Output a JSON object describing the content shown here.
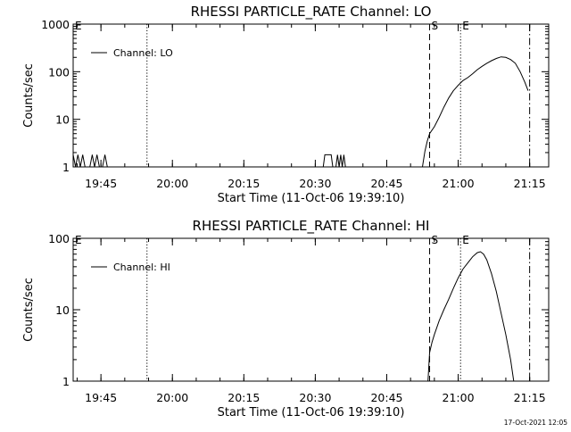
{
  "footer": {
    "timestamp": "17-Oct-2021 12:05"
  },
  "chart_data": [
    {
      "type": "line",
      "title": "RHESSI PARTICLE_RATE Channel: LO",
      "xlabel": "Start Time (11-Oct-06 19:39:10)",
      "ylabel": "Counts/sec",
      "yscale": "log",
      "xlim": [
        "19:39:10",
        "21:19:00"
      ],
      "ylim": [
        1,
        1000
      ],
      "xticks": [
        "19:45",
        "20:00",
        "20:15",
        "20:30",
        "20:45",
        "21:00",
        "21:15"
      ],
      "yticks": [
        "1",
        "10",
        "100",
        "1000"
      ],
      "grid": false,
      "legend_position": "top-left",
      "series": [
        {
          "name": "Channel: LO",
          "points": [
            [
              "19:39:10",
              1.8
            ],
            [
              "19:39:40",
              1
            ],
            [
              "19:40:10",
              1.8
            ],
            [
              "19:40:40",
              1
            ],
            [
              "19:41:10",
              1.8
            ],
            [
              "19:41:40",
              1
            ],
            [
              "19:42:40",
              1
            ],
            [
              "19:43:10",
              1.8
            ],
            [
              "19:43:40",
              1
            ],
            [
              "19:44:10",
              1.8
            ],
            [
              "19:44:40",
              1
            ],
            [
              "19:45:20",
              1
            ],
            [
              "19:45:50",
              1.8
            ],
            [
              "19:46:20",
              1
            ],
            [
              "20:31:40",
              1
            ],
            [
              "20:32:00",
              1.8
            ],
            [
              "20:33:20",
              1.8
            ],
            [
              "20:33:40",
              1
            ],
            [
              "20:34:20",
              1
            ],
            [
              "20:34:40",
              1.8
            ],
            [
              "20:35:00",
              1
            ],
            [
              "20:35:20",
              1.8
            ],
            [
              "20:35:40",
              1
            ],
            [
              "20:36:00",
              1.8
            ],
            [
              "20:36:20",
              1
            ],
            [
              "20:52:30",
              1
            ],
            [
              "20:53:00",
              2.1
            ],
            [
              "20:53:30",
              3.5
            ],
            [
              "20:54:00",
              5
            ],
            [
              "20:55:00",
              7
            ],
            [
              "20:56:00",
              11
            ],
            [
              "20:57:00",
              18
            ],
            [
              "20:58:00",
              28
            ],
            [
              "20:59:00",
              40
            ],
            [
              "21:00:00",
              52
            ],
            [
              "21:01:00",
              65
            ],
            [
              "21:02:00",
              75
            ],
            [
              "21:03:00",
              90
            ],
            [
              "21:04:00",
              110
            ],
            [
              "21:05:00",
              130
            ],
            [
              "21:06:00",
              150
            ],
            [
              "21:07:00",
              170
            ],
            [
              "21:08:00",
              190
            ],
            [
              "21:09:00",
              205
            ],
            [
              "21:10:00",
              200
            ],
            [
              "21:11:00",
              180
            ],
            [
              "21:12:00",
              150
            ],
            [
              "21:13:00",
              100
            ],
            [
              "21:14:00",
              60
            ],
            [
              "21:14:40",
              40
            ]
          ]
        }
      ],
      "markers": [
        {
          "time": "19:39:10",
          "style": "dotted",
          "label": "E"
        },
        {
          "time": "19:54:40",
          "style": "dotted",
          "label": ""
        },
        {
          "time": "20:54:00",
          "style": "dashed",
          "label": "S"
        },
        {
          "time": "21:00:30",
          "style": "dotted",
          "label": "E"
        },
        {
          "time": "21:15:00",
          "style": "dash-dot",
          "label": ""
        }
      ]
    },
    {
      "type": "line",
      "title": "RHESSI PARTICLE_RATE Channel: HI",
      "xlabel": "Start Time (11-Oct-06 19:39:10)",
      "ylabel": "Counts/sec",
      "yscale": "log",
      "xlim": [
        "19:39:10",
        "21:19:00"
      ],
      "ylim": [
        1,
        100
      ],
      "xticks": [
        "19:45",
        "20:00",
        "20:15",
        "20:30",
        "20:45",
        "21:00",
        "21:15"
      ],
      "yticks": [
        "1",
        "10",
        "100"
      ],
      "grid": false,
      "legend_position": "top-left",
      "series": [
        {
          "name": "Channel: HI",
          "points": [
            [
              "20:53:40",
              1
            ],
            [
              "20:54:00",
              2.5
            ],
            [
              "20:54:30",
              3.5
            ],
            [
              "20:55:00",
              4.5
            ],
            [
              "20:56:00",
              7
            ],
            [
              "20:57:00",
              10
            ],
            [
              "20:58:00",
              14
            ],
            [
              "20:59:00",
              20
            ],
            [
              "21:00:00",
              28
            ],
            [
              "21:01:00",
              37
            ],
            [
              "21:02:00",
              45
            ],
            [
              "21:03:00",
              55
            ],
            [
              "21:04:00",
              63
            ],
            [
              "21:04:40",
              65
            ],
            [
              "21:05:20",
              60
            ],
            [
              "21:06:00",
              50
            ],
            [
              "21:07:00",
              32
            ],
            [
              "21:08:00",
              18
            ],
            [
              "21:09:00",
              9
            ],
            [
              "21:10:00",
              4.5
            ],
            [
              "21:11:00",
              2
            ],
            [
              "21:11:40",
              1
            ]
          ]
        }
      ],
      "markers": [
        {
          "time": "19:39:10",
          "style": "dotted",
          "label": "E"
        },
        {
          "time": "19:54:40",
          "style": "dotted",
          "label": ""
        },
        {
          "time": "20:54:00",
          "style": "dashed",
          "label": "S"
        },
        {
          "time": "21:00:30",
          "style": "dotted",
          "label": "E"
        },
        {
          "time": "21:15:00",
          "style": "dash-dot",
          "label": ""
        }
      ]
    }
  ]
}
